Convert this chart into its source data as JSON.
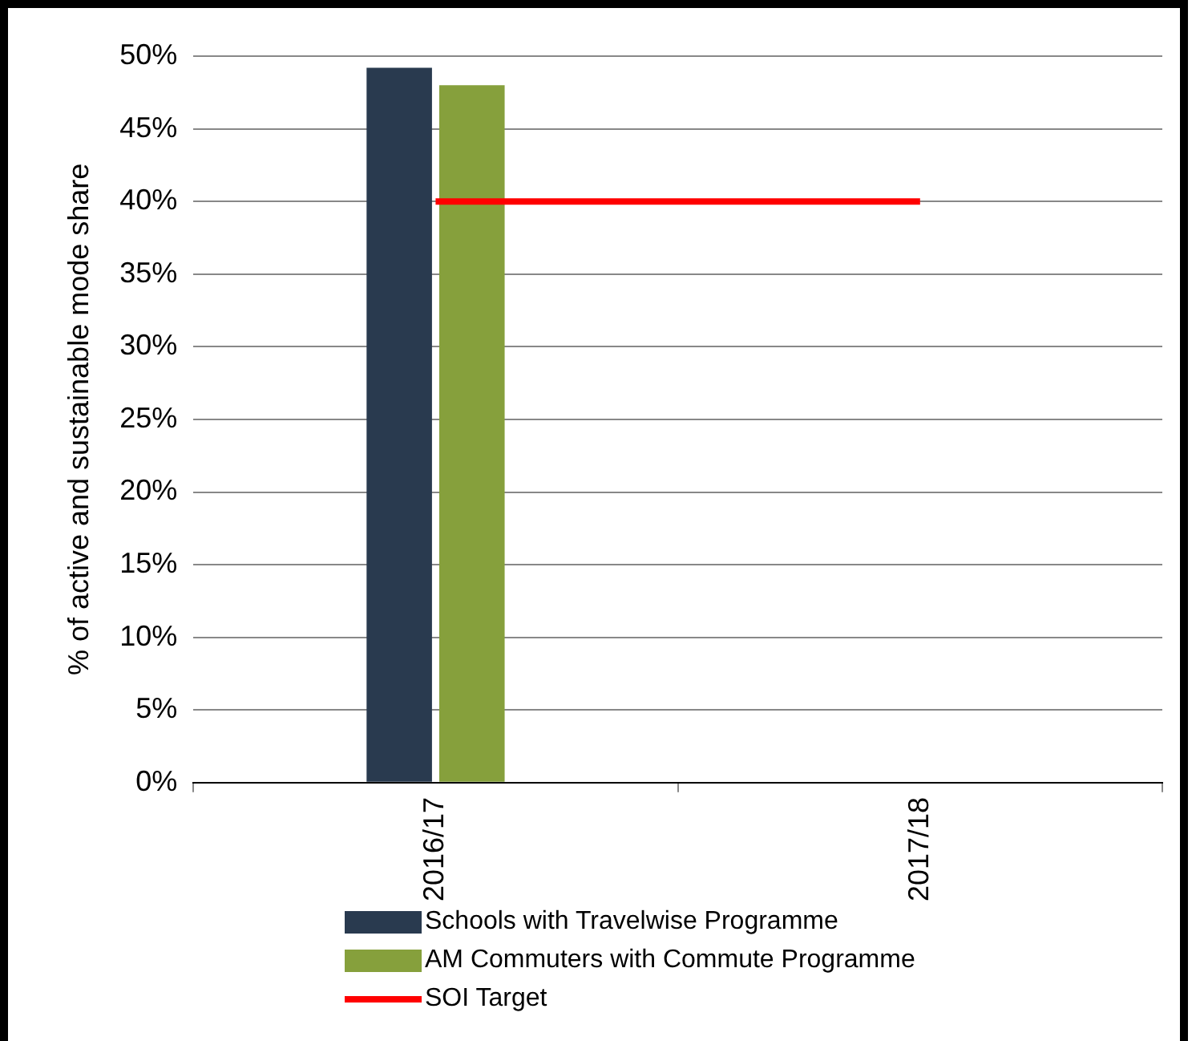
{
  "chart_data": {
    "type": "bar",
    "ylabel": "% of active and sustainable mode share",
    "categories": [
      "2016/17",
      "2017/18"
    ],
    "series": [
      {
        "name": "Schools with Travelwise Programme",
        "color": "#293a4f",
        "values": [
          49.2,
          null
        ]
      },
      {
        "name": "AM Commuters with Commute Programme",
        "color": "#86a03c",
        "values": [
          48.0,
          null
        ]
      },
      {
        "name": "SOI Target",
        "type": "line",
        "color": "#ff0000",
        "values": [
          40,
          40
        ]
      }
    ],
    "ylim": [
      0,
      50
    ],
    "yticks": [
      {
        "value": 0,
        "label": "0%"
      },
      {
        "value": 5,
        "label": "5%"
      },
      {
        "value": 10,
        "label": "10%"
      },
      {
        "value": 15,
        "label": "15%"
      },
      {
        "value": 20,
        "label": "20%"
      },
      {
        "value": 25,
        "label": "25%"
      },
      {
        "value": 30,
        "label": "30%"
      },
      {
        "value": 35,
        "label": "35%"
      },
      {
        "value": 40,
        "label": "40%"
      },
      {
        "value": 45,
        "label": "45%"
      },
      {
        "value": 50,
        "label": "50%"
      }
    ],
    "grid": "y",
    "legend": "bottom",
    "marker": "none"
  }
}
